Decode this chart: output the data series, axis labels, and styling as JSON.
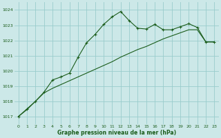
{
  "title": "Graphe pression niveau de la mer (hPa)",
  "bg_color": "#cce8e8",
  "grid_color": "#99cccc",
  "line_color": "#1a5c1a",
  "xlim": [
    -0.5,
    23.5
  ],
  "ylim": [
    1016.5,
    1024.5
  ],
  "yticks": [
    1017,
    1018,
    1019,
    1020,
    1021,
    1022,
    1023,
    1024
  ],
  "xticks": [
    0,
    1,
    2,
    3,
    4,
    5,
    6,
    7,
    8,
    9,
    10,
    11,
    12,
    13,
    14,
    15,
    16,
    17,
    18,
    19,
    20,
    21,
    22,
    23
  ],
  "series_smooth_x": [
    0,
    1,
    2,
    3,
    4,
    5,
    6,
    7,
    8,
    9,
    10,
    11,
    12,
    13,
    14,
    15,
    16,
    17,
    18,
    19,
    20,
    21,
    22,
    23
  ],
  "series_smooth_y": [
    1017.0,
    1017.45,
    1018.0,
    1018.55,
    1018.85,
    1019.1,
    1019.35,
    1019.6,
    1019.85,
    1020.1,
    1020.35,
    1020.6,
    1020.9,
    1021.15,
    1021.4,
    1021.6,
    1021.85,
    1022.1,
    1022.3,
    1022.5,
    1022.7,
    1022.7,
    1021.9,
    1021.9
  ],
  "series_marker_x": [
    0,
    1,
    2,
    3,
    4,
    5,
    6,
    7,
    8,
    9,
    10,
    11,
    12,
    13,
    14,
    15,
    16,
    17,
    18,
    19,
    20,
    21,
    22,
    23
  ],
  "series_marker_y": [
    1017.0,
    1017.5,
    1018.0,
    1018.6,
    1019.4,
    1019.6,
    1019.85,
    1020.9,
    1021.85,
    1022.4,
    1023.05,
    1023.55,
    1023.9,
    1023.3,
    1022.8,
    1022.75,
    1023.05,
    1022.7,
    1022.7,
    1022.9,
    1023.1,
    1022.85,
    1021.9,
    1021.9
  ]
}
